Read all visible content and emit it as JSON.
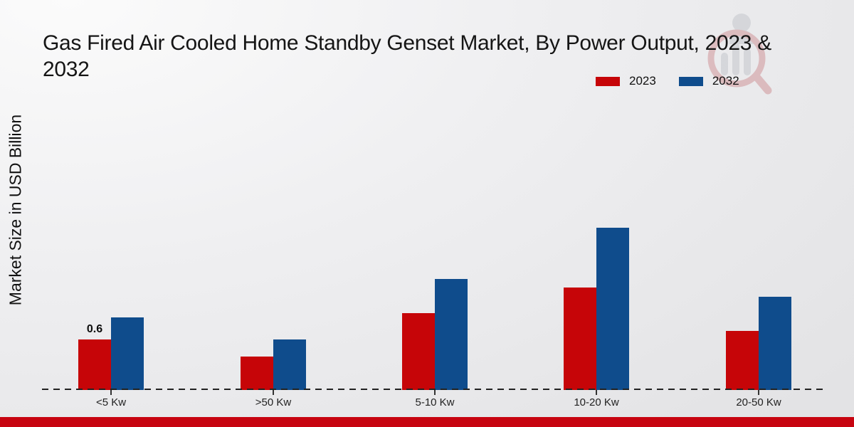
{
  "title": {
    "line1": "Gas Fired Air Cooled Home Standby Genset Market, By Power Output, 2023 &",
    "line2": "2032"
  },
  "ylabel": "Market Size in USD Billion",
  "chart_data": {
    "type": "bar",
    "title": "Gas Fired Air Cooled Home Standby Genset Market, By Power Output, 2023 & 2032",
    "categories": [
      "<5 Kw",
      ">50 Kw",
      "5-10 Kw",
      "10-20 Kw",
      "20-50 Kw"
    ],
    "series": [
      {
        "name": "2023",
        "color": "#c60508",
        "values": [
          0.6,
          0.4,
          0.91,
          1.22,
          0.7
        ]
      },
      {
        "name": "2032",
        "color": "#0f4c8c",
        "values": [
          0.86,
          0.6,
          1.32,
          1.93,
          1.11
        ]
      }
    ],
    "xlabel": "",
    "ylabel": "Market Size in USD Billion",
    "ylim": [
      0,
      3.45
    ],
    "grid": false,
    "legend_position": "top-right",
    "baseline_style": "dashed",
    "annotations": [
      {
        "series": "2023",
        "category": "<5 Kw",
        "text": "0.6"
      }
    ]
  },
  "watermark_icon": "magnifier-bar-chart-logo",
  "footer": {
    "color": "#c70410"
  }
}
